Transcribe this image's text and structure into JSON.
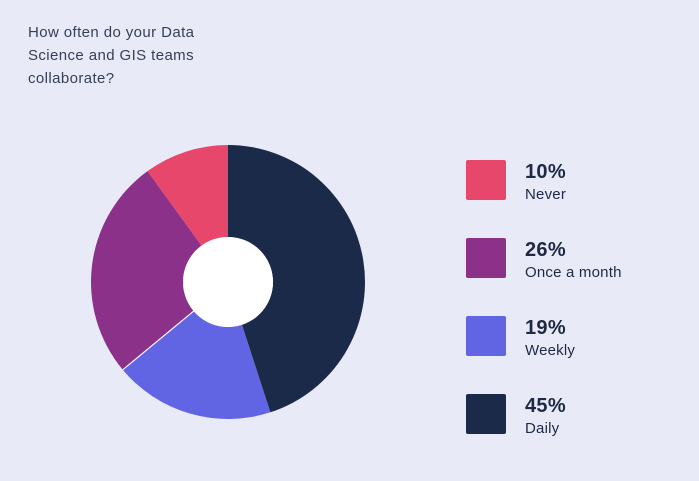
{
  "background_color": "#e9eaf7",
  "title": {
    "text": "How often do your Data Science and GIS teams collaborate?",
    "lines": [
      "How often do your Data",
      "Science and GIS teams",
      "collaborate?"
    ],
    "color": "#363f58"
  },
  "chart_data": {
    "type": "pie",
    "donut": true,
    "title": "How often do your Data Science and GIS teams collaborate?",
    "categories": [
      "Never",
      "Once a month",
      "Weekly",
      "Daily"
    ],
    "values": [
      10,
      26,
      19,
      45
    ],
    "unit": "%",
    "colors": [
      "#e8476c",
      "#8c3189",
      "#6165e4",
      "#1b2a48"
    ],
    "hole_color": "#ffffff",
    "start_angle_deg": 0,
    "direction": "clockwise",
    "clockwise_order": [
      "Daily",
      "Weekly",
      "Once a month",
      "Never"
    ],
    "separator_after_clockwise_index": 1,
    "legend_position": "right"
  },
  "legend": {
    "items": [
      {
        "percent": "10%",
        "label": "Never",
        "color": "#e8476c"
      },
      {
        "percent": "26%",
        "label": "Once a month",
        "color": "#8c3189"
      },
      {
        "percent": "19%",
        "label": "Weekly",
        "color": "#6165e4"
      },
      {
        "percent": "45%",
        "label": "Daily",
        "color": "#1b2a48"
      }
    ]
  }
}
